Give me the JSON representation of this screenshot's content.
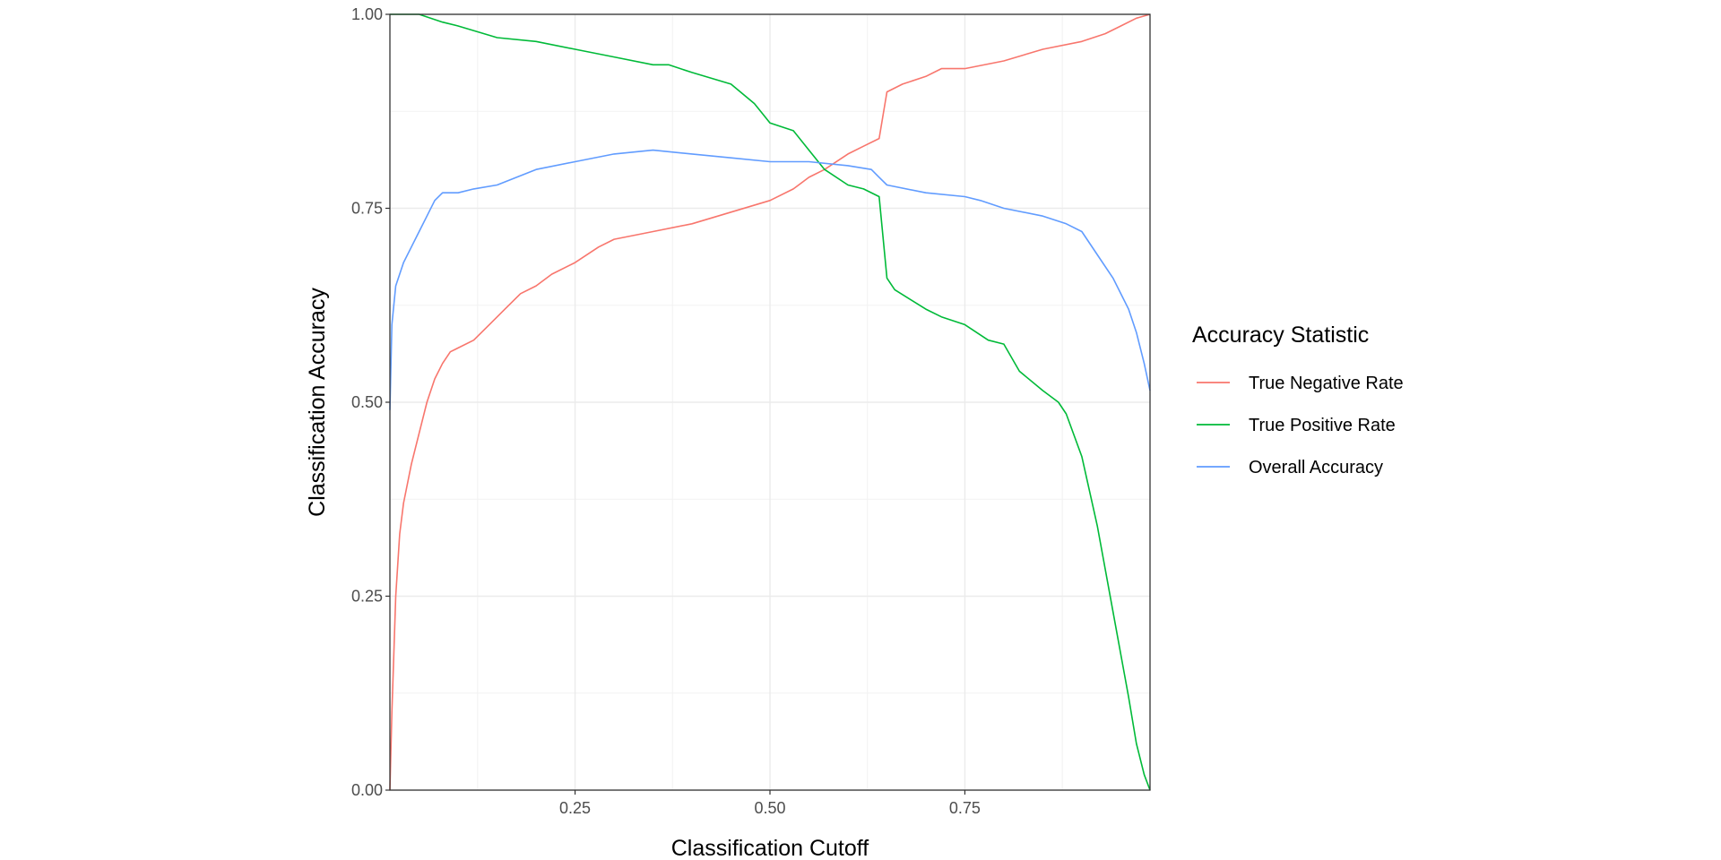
{
  "chart_data": {
    "type": "line",
    "xlabel": "Classification Cutoff",
    "ylabel": "Classification Accuracy",
    "xlim": [
      0.0125,
      0.9875
    ],
    "ylim": [
      0,
      1
    ],
    "x_ticks": [
      0.25,
      0.5,
      0.75
    ],
    "x_tick_labels": [
      "0.25",
      "0.50",
      "0.75"
    ],
    "y_ticks": [
      0,
      0.25,
      0.5,
      0.75,
      1
    ],
    "y_tick_labels": [
      "0.00",
      "0.25",
      "0.50",
      "0.75",
      "1.00"
    ],
    "grid": true,
    "legend_position": "right",
    "legend_title": "Accuracy Statistic",
    "series": [
      {
        "name": "True Negative Rate",
        "color": "#F8766D",
        "x": [
          0.0125,
          0.015,
          0.02,
          0.025,
          0.03,
          0.04,
          0.05,
          0.06,
          0.07,
          0.08,
          0.09,
          0.1,
          0.12,
          0.14,
          0.16,
          0.18,
          0.2,
          0.22,
          0.25,
          0.28,
          0.3,
          0.35,
          0.4,
          0.45,
          0.5,
          0.53,
          0.55,
          0.57,
          0.6,
          0.62,
          0.64,
          0.65,
          0.67,
          0.7,
          0.72,
          0.75,
          0.8,
          0.85,
          0.9,
          0.93,
          0.95,
          0.97,
          0.9875
        ],
        "y": [
          0.0,
          0.1,
          0.25,
          0.33,
          0.37,
          0.42,
          0.46,
          0.5,
          0.53,
          0.55,
          0.565,
          0.57,
          0.58,
          0.6,
          0.62,
          0.64,
          0.65,
          0.665,
          0.68,
          0.7,
          0.71,
          0.72,
          0.73,
          0.745,
          0.76,
          0.775,
          0.79,
          0.8,
          0.82,
          0.83,
          0.84,
          0.9,
          0.91,
          0.92,
          0.93,
          0.93,
          0.94,
          0.955,
          0.965,
          0.975,
          0.985,
          0.995,
          1.0
        ]
      },
      {
        "name": "True Positive Rate",
        "color": "#00BA38",
        "x": [
          0.0125,
          0.05,
          0.08,
          0.1,
          0.15,
          0.2,
          0.25,
          0.3,
          0.35,
          0.37,
          0.4,
          0.45,
          0.48,
          0.5,
          0.53,
          0.55,
          0.57,
          0.6,
          0.62,
          0.64,
          0.65,
          0.66,
          0.7,
          0.72,
          0.75,
          0.78,
          0.8,
          0.82,
          0.85,
          0.87,
          0.88,
          0.9,
          0.92,
          0.94,
          0.96,
          0.97,
          0.98,
          0.9875
        ],
        "y": [
          1.0,
          1.0,
          0.99,
          0.985,
          0.97,
          0.965,
          0.955,
          0.945,
          0.935,
          0.935,
          0.925,
          0.91,
          0.885,
          0.86,
          0.85,
          0.825,
          0.8,
          0.78,
          0.775,
          0.765,
          0.66,
          0.645,
          0.62,
          0.61,
          0.6,
          0.58,
          0.575,
          0.54,
          0.515,
          0.5,
          0.485,
          0.43,
          0.34,
          0.23,
          0.12,
          0.06,
          0.02,
          0.0
        ]
      },
      {
        "name": "Overall Accuracy",
        "color": "#619CFF",
        "x": [
          0.0125,
          0.015,
          0.02,
          0.03,
          0.04,
          0.05,
          0.06,
          0.07,
          0.08,
          0.1,
          0.12,
          0.15,
          0.2,
          0.25,
          0.3,
          0.35,
          0.4,
          0.45,
          0.5,
          0.55,
          0.6,
          0.63,
          0.64,
          0.65,
          0.7,
          0.75,
          0.77,
          0.8,
          0.85,
          0.88,
          0.9,
          0.92,
          0.94,
          0.96,
          0.97,
          0.98,
          0.9875
        ],
        "y": [
          0.49,
          0.6,
          0.65,
          0.68,
          0.7,
          0.72,
          0.74,
          0.76,
          0.77,
          0.77,
          0.775,
          0.78,
          0.8,
          0.81,
          0.82,
          0.825,
          0.82,
          0.815,
          0.81,
          0.81,
          0.805,
          0.8,
          0.79,
          0.78,
          0.77,
          0.765,
          0.76,
          0.75,
          0.74,
          0.73,
          0.72,
          0.69,
          0.66,
          0.62,
          0.59,
          0.55,
          0.515
        ]
      }
    ]
  }
}
